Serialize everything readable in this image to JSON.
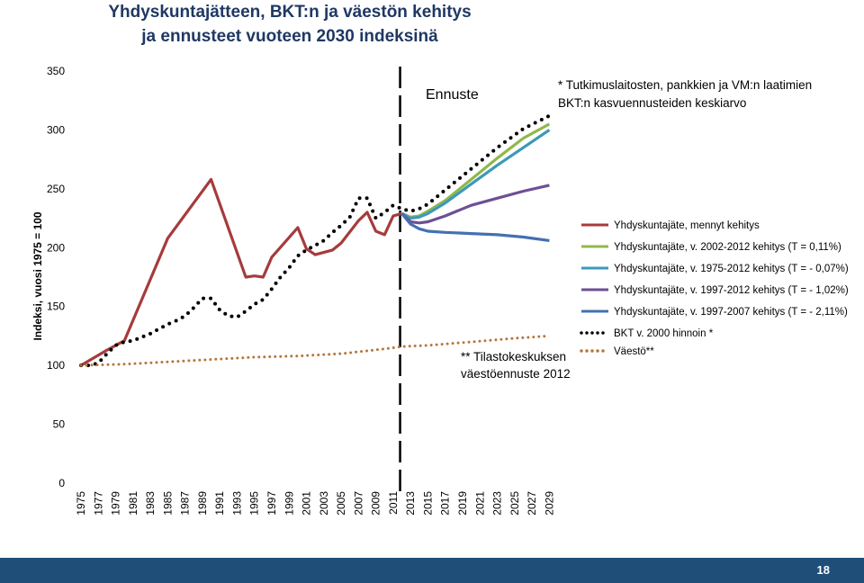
{
  "header": {
    "title_line1": "Yhdyskuntajätteen, BKT:n ja väestön kehitys",
    "title_line2": "ja ennusteet vuoteen 2030 indeksinä"
  },
  "footer": {
    "page_number": "18",
    "color": "#1f4e79"
  },
  "annotations": {
    "forecast": "Ennuste",
    "note_line1": "* Tutkimuslaitosten, pankkien ja VM:n laatimien",
    "note_line2": "BKT:n kasvuennusteiden keskiarvo",
    "pop_line1": "** Tilastokeskuksen",
    "pop_line2": "väestöennuste 2012"
  },
  "chart_data": {
    "type": "line",
    "ylabel": "Indeksi, vuosi 1975 = 100",
    "xlabel": "",
    "ylim": [
      0,
      350
    ],
    "yticks": [
      0,
      50,
      100,
      150,
      200,
      250,
      300,
      350
    ],
    "xlim": [
      1975,
      2030
    ],
    "xticks": [
      1975,
      1977,
      1979,
      1981,
      1983,
      1985,
      1987,
      1989,
      1991,
      1993,
      1995,
      1997,
      1999,
      2001,
      2003,
      2005,
      2007,
      2009,
      2011,
      2013,
      2015,
      2017,
      2019,
      2021,
      2023,
      2025,
      2027,
      2029
    ],
    "forecast_divider_year": 2012,
    "grid": false,
    "legend_position": "right",
    "series": [
      {
        "name": "Yhdyskuntajäte, mennyt kehitys",
        "color": "#a63b3b",
        "dash": "solid",
        "x": [
          1975,
          1978,
          1980,
          1985,
          1990,
          1994,
          1995,
          1996,
          1997,
          2000,
          2001,
          2002,
          2004,
          2005,
          2007,
          2008,
          2009,
          2010,
          2011,
          2012
        ],
        "y": [
          100,
          113,
          121,
          208,
          258,
          175,
          176,
          175,
          192,
          217,
          199,
          194,
          198,
          204,
          223,
          230,
          214,
          211,
          227,
          229
        ]
      },
      {
        "name": "Yhdyskuntajäte, v. 2002-2012 kehitys (T = 0,11%)",
        "color": "#8fb84b",
        "dash": "solid",
        "x": [
          2012,
          2013,
          2014,
          2015,
          2017,
          2020,
          2023,
          2026,
          2029
        ],
        "y": [
          229,
          226,
          227,
          231,
          240,
          258,
          276,
          293,
          305
        ]
      },
      {
        "name": "Yhdyskuntajäte, v. 1975-2012 kehitys (T = - 0,07%)",
        "color": "#3d99b8",
        "dash": "solid",
        "x": [
          2012,
          2013,
          2014,
          2015,
          2017,
          2020,
          2023,
          2026,
          2029
        ],
        "y": [
          229,
          225,
          226,
          229,
          238,
          254,
          270,
          285,
          300
        ]
      },
      {
        "name": "Yhdyskuntajäte, v. 1997-2012 kehitys (T = - 1,02%)",
        "color": "#6d4f96",
        "dash": "solid",
        "x": [
          2012,
          2013,
          2014,
          2015,
          2017,
          2020,
          2023,
          2026,
          2029
        ],
        "y": [
          229,
          222,
          221,
          222,
          227,
          236,
          242,
          248,
          253
        ]
      },
      {
        "name": "Yhdyskuntajäte, v. 1997-2007 kehitys (T = - 2,11%)",
        "color": "#4470b0",
        "dash": "solid",
        "x": [
          2012,
          2013,
          2014,
          2015,
          2017,
          2020,
          2023,
          2026,
          2029
        ],
        "y": [
          229,
          220,
          216,
          214,
          213,
          212,
          211,
          209,
          206
        ]
      },
      {
        "name": "BKT v. 2000 hinnoin *",
        "color": "#000000",
        "dash": "dotted",
        "x": [
          1975,
          1976,
          1977,
          1978,
          1979,
          1980,
          1981,
          1982,
          1983,
          1984,
          1985,
          1986,
          1987,
          1988,
          1989,
          1990,
          1991,
          1992,
          1993,
          1994,
          1995,
          1996,
          1997,
          1998,
          1999,
          2000,
          2001,
          2002,
          2003,
          2004,
          2005,
          2006,
          2007,
          2008,
          2009,
          2010,
          2011,
          2012,
          2013,
          2014,
          2015,
          2017,
          2020,
          2023,
          2026,
          2029
        ],
        "y": [
          100,
          100,
          102,
          110,
          117,
          120,
          121,
          124,
          127,
          131,
          135,
          138,
          142,
          149,
          157,
          157,
          147,
          142,
          141,
          146,
          152,
          156,
          165,
          175,
          183,
          193,
          198,
          202,
          206,
          213,
          219,
          226,
          242,
          242,
          225,
          230,
          236,
          233,
          231,
          233,
          237,
          249,
          267,
          285,
          301,
          312
        ]
      },
      {
        "name": "Väestö**",
        "color": "#b5763a",
        "dash": "dotted",
        "x": [
          1975,
          1980,
          1985,
          1990,
          1995,
          2000,
          2005,
          2010,
          2012,
          2015,
          2020,
          2025,
          2029
        ],
        "y": [
          100,
          101,
          103,
          105,
          107,
          108,
          110,
          114,
          116,
          117,
          120,
          123,
          125
        ]
      }
    ]
  }
}
